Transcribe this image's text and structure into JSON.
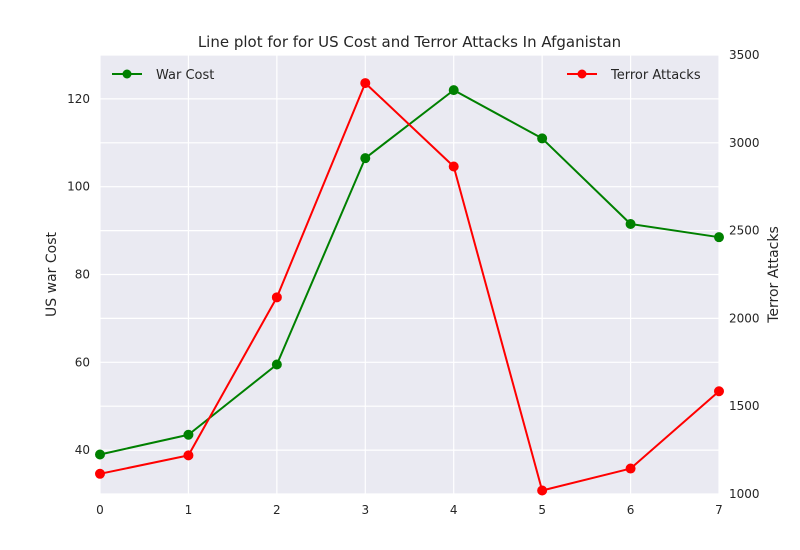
{
  "chart_data": {
    "type": "line",
    "title": "Line plot for for US Cost and Terror Attacks In Afganistan",
    "x": [
      0,
      1,
      2,
      3,
      4,
      5,
      6,
      7
    ],
    "xlim": [
      0,
      7
    ],
    "x_ticks": [
      "0",
      "1",
      "2",
      "3",
      "4",
      "5",
      "6",
      "7"
    ],
    "grid": true,
    "left_axis": {
      "label": "US war Cost",
      "ylim": [
        30,
        130
      ],
      "ticks": [
        40,
        60,
        80,
        100,
        120
      ],
      "tick_labels": [
        "40",
        "60",
        "80",
        "100",
        "120"
      ]
    },
    "right_axis": {
      "label": "Terror Attacks",
      "ylim": [
        1000,
        3500
      ],
      "ticks": [
        1000,
        1500,
        2000,
        2500,
        3000,
        3500
      ],
      "tick_labels": [
        "1000",
        "1500",
        "2000",
        "2500",
        "3000",
        "3500"
      ]
    },
    "series": [
      {
        "name": "War Cost",
        "axis": "left",
        "color": "#008000",
        "marker": "circle",
        "values": [
          39,
          43.5,
          59.5,
          106.5,
          122,
          111,
          91.5,
          88.5
        ]
      },
      {
        "name": "Terror Attacks",
        "axis": "right",
        "color": "#ff0000",
        "marker": "circle",
        "values": [
          1115,
          1220,
          2120,
          3340,
          2865,
          1020,
          1145,
          1585
        ]
      }
    ],
    "legends": [
      {
        "series": "War Cost",
        "placement": "top-left"
      },
      {
        "series": "Terror Attacks",
        "placement": "top-right"
      }
    ],
    "background_color": "#eaeaf2",
    "grid_color": "#ffffff"
  }
}
